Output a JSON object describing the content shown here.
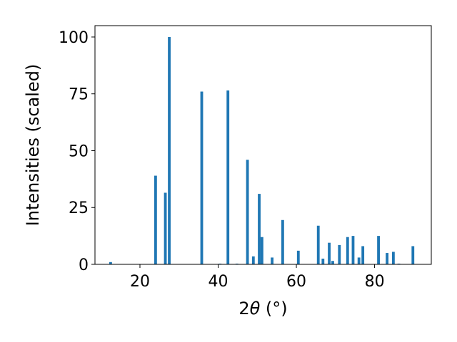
{
  "chart_data": {
    "type": "bar",
    "xlabel_prefix": "2",
    "xlabel_theta": "θ",
    "xlabel_suffix": " (°)",
    "ylabel": "Intensities (scaled)",
    "xlim": [
      8.5,
      94.5
    ],
    "ylim": [
      0,
      105
    ],
    "xticks": [
      20,
      40,
      60,
      80
    ],
    "yticks": [
      0,
      25,
      50,
      75,
      100
    ],
    "bar_width": 0.7,
    "color": "#1f77b4",
    "x": [
      12.5,
      24.0,
      26.5,
      27.5,
      35.8,
      40.5,
      42.5,
      44.8,
      47.5,
      49.0,
      50.5,
      51.2,
      53.8,
      56.5,
      60.5,
      65.6,
      66.8,
      68.4,
      69.3,
      71.0,
      73.1,
      74.5,
      76.0,
      77.0,
      81.0,
      83.2,
      84.8,
      86.2,
      89.8
    ],
    "values": [
      1.0,
      39.0,
      31.5,
      100.0,
      76.0,
      0.3,
      76.5,
      0.3,
      46.0,
      3.5,
      31.0,
      12.0,
      3.0,
      19.5,
      6.0,
      17.0,
      2.5,
      9.5,
      1.5,
      8.5,
      12.0,
      12.5,
      3.0,
      8.0,
      12.5,
      5.0,
      5.5,
      0.3,
      8.0
    ]
  }
}
